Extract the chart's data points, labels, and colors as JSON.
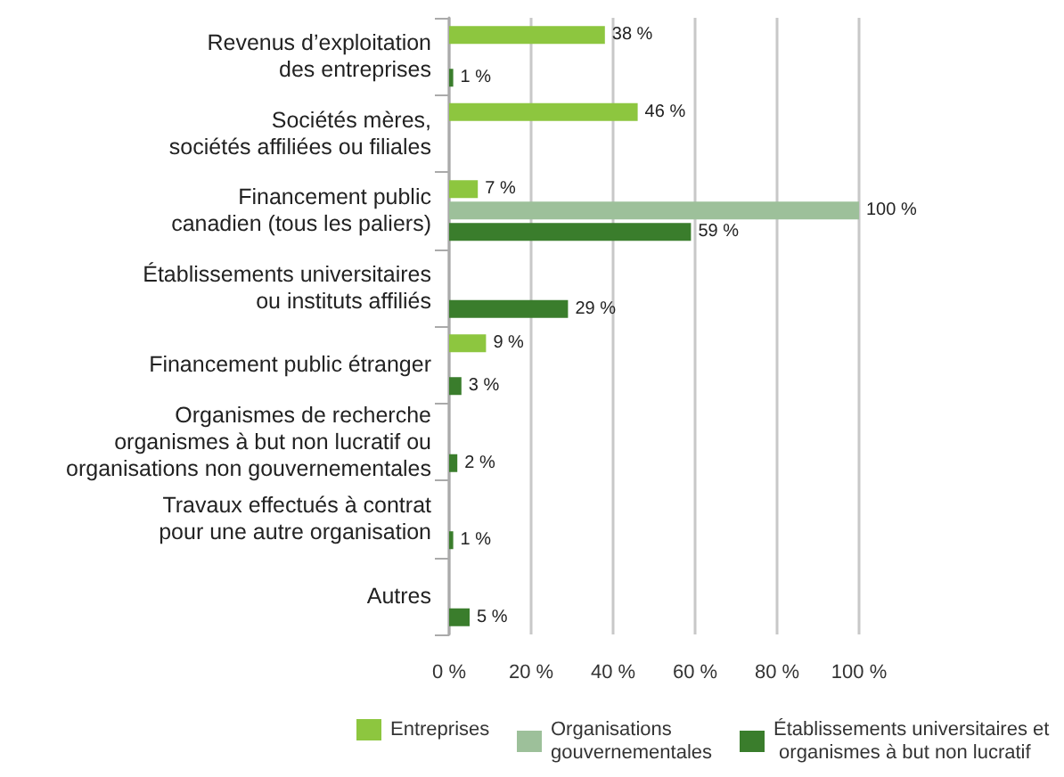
{
  "chart_data": {
    "type": "bar",
    "orientation": "horizontal",
    "categories": [
      "Revenus d’exploitation\ndes entreprises",
      "Sociétés mères,\nsociétés affiliées ou filiales",
      "Financement public\ncanadien (tous les paliers)",
      "Établissements universitaires\nou instituts affiliés",
      "Financement public étranger",
      "Organismes de recherche\norganismes à but non lucratif ou\norganisations non gouvernementales",
      "Travaux effectués à contrat\npour une autre organisation",
      "Autres"
    ],
    "series": [
      {
        "name": "Entreprises",
        "color": "#8dc63f",
        "values": [
          38,
          46,
          7,
          null,
          9,
          null,
          null,
          null
        ],
        "value_labels": [
          "38 %",
          "46 %",
          "7 %",
          null,
          "9 %",
          null,
          null,
          null
        ]
      },
      {
        "name": "Organisations gouvernementales",
        "color": "#9dc09a",
        "values": [
          null,
          null,
          100,
          null,
          null,
          null,
          null,
          null
        ],
        "value_labels": [
          null,
          null,
          "100 %",
          null,
          null,
          null,
          null,
          null
        ]
      },
      {
        "name": "Établissements universitaires et organismes à but non lucratif",
        "color": "#3a7d2c",
        "values": [
          1,
          null,
          59,
          29,
          3,
          2,
          1,
          5
        ],
        "value_labels": [
          "1 %",
          null,
          "59 %",
          "29 %",
          "3 %",
          "2 %",
          "1 %",
          "5 %"
        ]
      }
    ],
    "xlim": [
      0,
      100
    ],
    "xticks": [
      {
        "value": 0,
        "label": "0 %"
      },
      {
        "value": 20,
        "label": "20 %"
      },
      {
        "value": 40,
        "label": "40 %"
      },
      {
        "value": 60,
        "label": "60 %"
      },
      {
        "value": 80,
        "label": "80 %"
      },
      {
        "value": 100,
        "label": "100 %"
      }
    ],
    "grid": "x",
    "legend": "bottom"
  }
}
